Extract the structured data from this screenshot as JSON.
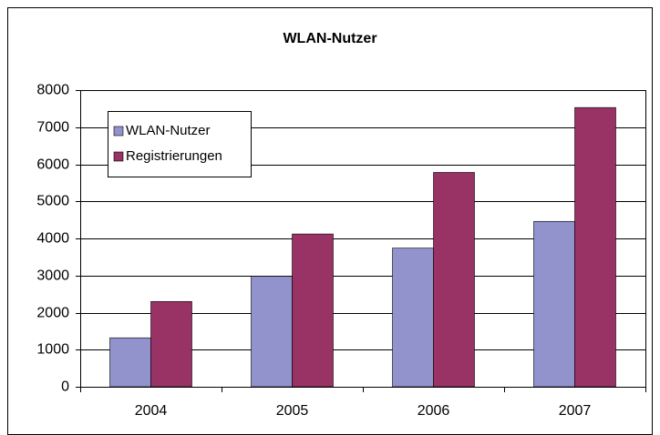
{
  "chart_data": {
    "type": "bar",
    "title": "WLAN-Nutzer",
    "categories": [
      "2004",
      "2005",
      "2006",
      "2007"
    ],
    "series": [
      {
        "name": "WLAN-Nutzer",
        "color": "#9292cc",
        "values": [
          1320,
          2980,
          3740,
          4460
        ]
      },
      {
        "name": "Registrierungen",
        "color": "#993366",
        "values": [
          2300,
          4120,
          5780,
          7530
        ]
      }
    ],
    "ylim": [
      0,
      8000
    ],
    "yticks": [
      0,
      1000,
      2000,
      3000,
      4000,
      5000,
      6000,
      7000,
      8000
    ],
    "grid": true,
    "legend": "top-left"
  }
}
